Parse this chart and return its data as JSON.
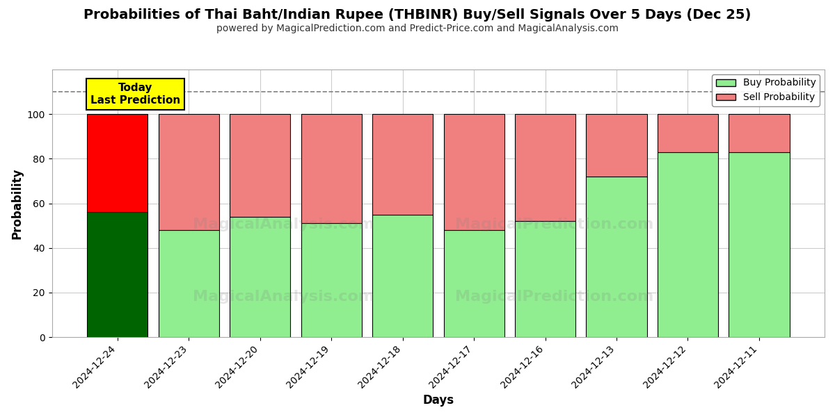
{
  "title": "Probabilities of Thai Baht/Indian Rupee (THBINR) Buy/Sell Signals Over 5 Days (Dec 25)",
  "subtitle": "powered by MagicalPrediction.com and Predict-Price.com and MagicalAnalysis.com",
  "xlabel": "Days",
  "ylabel": "Probability",
  "categories": [
    "2024-12-24",
    "2024-12-23",
    "2024-12-20",
    "2024-12-19",
    "2024-12-18",
    "2024-12-17",
    "2024-12-16",
    "2024-12-13",
    "2024-12-12",
    "2024-12-11"
  ],
  "buy_values": [
    56,
    48,
    54,
    51,
    55,
    48,
    52,
    72,
    83,
    83
  ],
  "sell_values": [
    44,
    52,
    46,
    49,
    45,
    52,
    48,
    28,
    17,
    17
  ],
  "buy_colors": [
    "#006400",
    "#90EE90",
    "#90EE90",
    "#90EE90",
    "#90EE90",
    "#90EE90",
    "#90EE90",
    "#90EE90",
    "#90EE90",
    "#90EE90"
  ],
  "sell_colors": [
    "#FF0000",
    "#F08080",
    "#F08080",
    "#F08080",
    "#F08080",
    "#F08080",
    "#F08080",
    "#F08080",
    "#F08080",
    "#F08080"
  ],
  "today_label": "Today\nLast Prediction",
  "dashed_line_y": 110,
  "ylim": [
    0,
    120
  ],
  "yticks": [
    0,
    20,
    40,
    60,
    80,
    100
  ],
  "bar_width": 0.85,
  "legend_buy_color": "#90EE90",
  "legend_sell_color": "#F08080",
  "background_color": "#ffffff",
  "grid_color": "#cccccc",
  "title_fontsize": 14,
  "subtitle_fontsize": 10,
  "axis_label_fontsize": 12
}
